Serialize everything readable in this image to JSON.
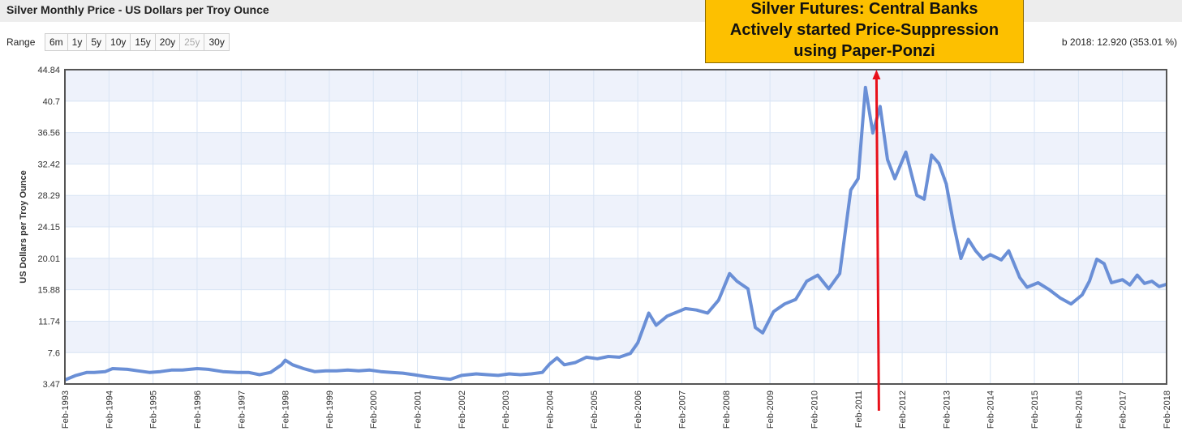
{
  "header": {
    "title": "Silver Monthly Price - US Dollars per Troy Ounce"
  },
  "range": {
    "label": "Range",
    "buttons": [
      {
        "label": "6m",
        "enabled": true
      },
      {
        "label": "1y",
        "enabled": true
      },
      {
        "label": "5y",
        "enabled": true
      },
      {
        "label": "10y",
        "enabled": true
      },
      {
        "label": "15y",
        "enabled": true
      },
      {
        "label": "20y",
        "enabled": true
      },
      {
        "label": "25y",
        "enabled": false
      },
      {
        "label": "30y",
        "enabled": true
      }
    ],
    "info": "b 2018: 12.920 (353.01 %)"
  },
  "annotation": {
    "lines": [
      "Silver Futures: Central Banks",
      "Actively started Price-Suppression",
      "using Paper-Ponzi"
    ],
    "arrow_date": "2011-07",
    "arrow_color": "#e8101a",
    "box_color": "#fdc000"
  },
  "colors": {
    "line": "#6a8fd6",
    "grid": "#d8e4f4",
    "band": "#eef2fb",
    "frame": "#555555"
  },
  "chart_data": {
    "type": "line",
    "title": "Silver Monthly Price - US Dollars per Troy Ounce",
    "xlabel": "",
    "ylabel": "US Dollars per Troy Ounce",
    "yticks": [
      "3.47",
      "7.6",
      "11.74",
      "15.88",
      "20.01",
      "24.15",
      "28.29",
      "32.42",
      "36.56",
      "40.7",
      "44.84"
    ],
    "ylim": [
      3.47,
      44.84
    ],
    "xlim": [
      "1993-02",
      "2018-02"
    ],
    "xticks": [
      "Feb-1993",
      "Feb-1994",
      "Feb-1995",
      "Feb-1996",
      "Feb-1997",
      "Feb-1998",
      "Feb-1999",
      "Feb-2000",
      "Feb-2001",
      "Feb-2002",
      "Feb-2003",
      "Feb-2004",
      "Feb-2005",
      "Feb-2006",
      "Feb-2007",
      "Feb-2008",
      "Feb-2009",
      "Feb-2010",
      "Feb-2011",
      "Feb-2012",
      "Feb-2013",
      "Feb-2014",
      "Feb-2015",
      "Feb-2016",
      "Feb-2017",
      "Feb-2018"
    ],
    "grid": true,
    "legend": "none",
    "series": [
      {
        "x": [
          "1993-02",
          "1993-05",
          "1993-08",
          "1993-10",
          "1994-01",
          "1994-03",
          "1994-07",
          "1994-10",
          "1995-01",
          "1995-04",
          "1995-07",
          "1995-10",
          "1996-02",
          "1996-05",
          "1996-09",
          "1997-01",
          "1997-04",
          "1997-07",
          "1997-10",
          "1998-01",
          "1998-02",
          "1998-04",
          "1998-07",
          "1998-10",
          "1999-01",
          "1999-04",
          "1999-07",
          "1999-10",
          "2000-01",
          "2000-04",
          "2000-07",
          "2000-10",
          "2001-01",
          "2001-05",
          "2001-09",
          "2001-11",
          "2002-02",
          "2002-06",
          "2002-09",
          "2002-12",
          "2003-03",
          "2003-06",
          "2003-09",
          "2003-12",
          "2004-02",
          "2004-04",
          "2004-06",
          "2004-09",
          "2004-12",
          "2005-03",
          "2005-06",
          "2005-09",
          "2005-12",
          "2006-02",
          "2006-05",
          "2006-07",
          "2006-10",
          "2006-12",
          "2007-03",
          "2007-06",
          "2007-09",
          "2007-12",
          "2008-03",
          "2008-05",
          "2008-08",
          "2008-10",
          "2008-12",
          "2009-03",
          "2009-06",
          "2009-09",
          "2009-12",
          "2010-03",
          "2010-06",
          "2010-09",
          "2010-12",
          "2011-02",
          "2011-04",
          "2011-06",
          "2011-08",
          "2011-10",
          "2011-12",
          "2012-03",
          "2012-06",
          "2012-08",
          "2012-10",
          "2012-12",
          "2013-02",
          "2013-04",
          "2013-06",
          "2013-08",
          "2013-10",
          "2013-12",
          "2014-02",
          "2014-05",
          "2014-07",
          "2014-10",
          "2014-12",
          "2015-03",
          "2015-06",
          "2015-09",
          "2015-12",
          "2016-03",
          "2016-05",
          "2016-07",
          "2016-09",
          "2016-11",
          "2017-02",
          "2017-04",
          "2017-06",
          "2017-08",
          "2017-10",
          "2017-12",
          "2018-02"
        ],
        "values": [
          4.0,
          4.6,
          5.0,
          5.0,
          5.1,
          5.5,
          5.4,
          5.2,
          5.0,
          5.1,
          5.3,
          5.3,
          5.5,
          5.4,
          5.1,
          5.0,
          5.0,
          4.7,
          5.0,
          6.0,
          6.6,
          6.0,
          5.5,
          5.1,
          5.2,
          5.2,
          5.3,
          5.2,
          5.3,
          5.1,
          5.0,
          4.9,
          4.7,
          4.4,
          4.2,
          4.1,
          4.6,
          4.8,
          4.7,
          4.6,
          4.8,
          4.7,
          4.8,
          5.0,
          6.1,
          6.9,
          6.0,
          6.3,
          7.0,
          6.8,
          7.1,
          7.0,
          7.5,
          8.9,
          12.8,
          11.2,
          12.4,
          12.8,
          13.4,
          13.2,
          12.8,
          14.5,
          18.0,
          17.0,
          16.0,
          10.9,
          10.2,
          13.0,
          14.0,
          14.6,
          17.0,
          17.8,
          16.0,
          18.0,
          29.0,
          30.5,
          42.5,
          36.5,
          40.0,
          33.0,
          30.5,
          34.0,
          28.3,
          27.8,
          33.6,
          32.5,
          29.8,
          24.5,
          20.0,
          22.5,
          21.0,
          19.9,
          20.5,
          19.8,
          21.0,
          17.5,
          16.2,
          16.8,
          15.9,
          14.8,
          14.0,
          15.2,
          17.0,
          19.9,
          19.3,
          16.8,
          17.2,
          16.5,
          17.8,
          16.7,
          17.0,
          16.3,
          16.6
        ]
      }
    ]
  }
}
